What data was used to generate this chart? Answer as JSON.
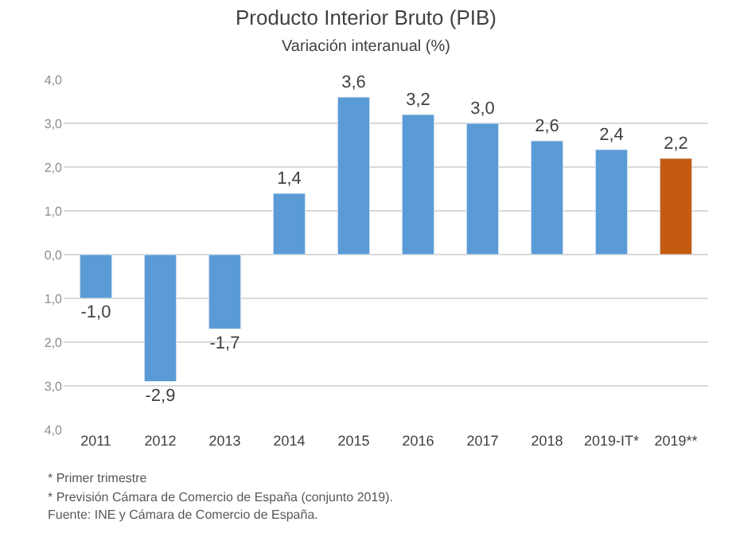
{
  "chart_data": {
    "type": "bar",
    "title": "Producto Interior Bruto (PIB)",
    "subtitle": "Variación interanual (%)",
    "categories": [
      "2011",
      "2012",
      "2013",
      "2014",
      "2015",
      "2016",
      "2017",
      "2018",
      "2019-IT*",
      "2019**"
    ],
    "values": [
      -1.0,
      -2.9,
      -1.7,
      1.4,
      3.6,
      3.2,
      3.0,
      2.6,
      2.4,
      2.2
    ],
    "value_labels": [
      "-1,0",
      "-2,9",
      "-1,7",
      "1,4",
      "3,6",
      "3,2",
      "3,0",
      "2,6",
      "2,4",
      "2,2"
    ],
    "colors": [
      "#5b9bd5",
      "#5b9bd5",
      "#5b9bd5",
      "#5b9bd5",
      "#5b9bd5",
      "#5b9bd5",
      "#5b9bd5",
      "#5b9bd5",
      "#5b9bd5",
      "#c55a11"
    ],
    "ylim": [
      -4,
      4
    ],
    "yticks": [
      {
        "value": 4,
        "label": "4,0"
      },
      {
        "value": 3,
        "label": "3,0"
      },
      {
        "value": 2,
        "label": "2,0"
      },
      {
        "value": 1,
        "label": "1,0"
      },
      {
        "value": 0,
        "label": "0,0"
      },
      {
        "value": -1,
        "label": "1,0"
      },
      {
        "value": -2,
        "label": "2,0"
      },
      {
        "value": -3,
        "label": "3,0"
      },
      {
        "value": -4,
        "label": "4,0"
      }
    ],
    "grid": "y",
    "annotations": [
      "* Primer trimestre",
      "* Previsión Cámara de Comercio de España (conjunto 2019).",
      "Fuente: INE y Cámara de Comercio de España."
    ]
  }
}
